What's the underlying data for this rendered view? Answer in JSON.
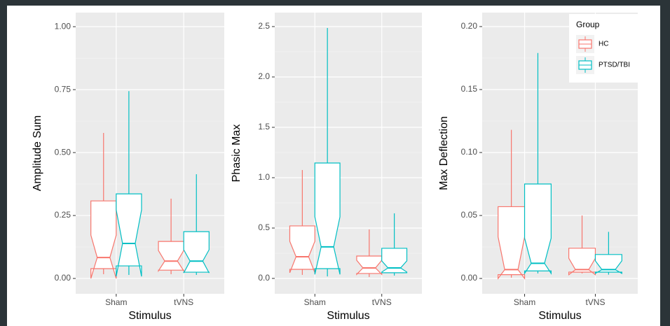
{
  "groups": {
    "title": "Group",
    "items": [
      {
        "name": "HC",
        "color": "#f8766d"
      },
      {
        "name": "PTSD/TBI",
        "color": "#00bfc4"
      }
    ]
  },
  "chart_data": [
    {
      "type": "box",
      "ylabel": "Amplitude Sum",
      "xlabel": "Stimulus",
      "categories": [
        "Sham",
        "tVNS"
      ],
      "ylim": [
        -0.061,
        1.056
      ],
      "yticks": [
        {
          "value": 0,
          "label": "0.00"
        },
        0.25,
        {
          "value": 0.5,
          "label": "0.50"
        },
        0.75,
        {
          "value": 1,
          "label": "1.00"
        }
      ],
      "series": [
        {
          "min": [
            0.017,
            0.017
          ],
          "q1": [
            0.039,
            0.033
          ],
          "median": [
            0.083,
            0.069
          ],
          "q3": [
            0.308,
            0.147
          ],
          "max": [
            0.578,
            0.317
          ],
          "notch_low": [
            0.0,
            0.03
          ],
          "notch_high": [
            0.172,
            0.111
          ]
        },
        {
          "min": [
            0.014,
            0.014
          ],
          "q1": [
            0.05,
            0.025
          ],
          "median": [
            0.139,
            0.069
          ],
          "q3": [
            0.336,
            0.186
          ],
          "max": [
            0.744,
            0.414
          ],
          "notch_low": [
            0.008,
            0.022
          ],
          "notch_high": [
            0.272,
            0.114
          ]
        }
      ]
    },
    {
      "type": "box",
      "ylabel": "Phasic Max",
      "xlabel": "Stimulus",
      "categories": [
        "Sham",
        "tVNS"
      ],
      "ylim": [
        -0.153,
        2.639
      ],
      "yticks": [
        {
          "value": 0,
          "label": "0.0"
        },
        0.5,
        {
          "value": 1,
          "label": "1.0"
        },
        1.5,
        {
          "value": 2,
          "label": "2.0"
        },
        2.5
      ],
      "series": [
        {
          "min": [
            0.035,
            0.014
          ],
          "q1": [
            0.09,
            0.049
          ],
          "median": [
            0.215,
            0.104
          ],
          "q3": [
            0.521,
            0.222
          ],
          "max": [
            1.076,
            0.486
          ],
          "notch_low": [
            0.056,
            0.04
          ],
          "notch_high": [
            0.368,
            0.18
          ]
        },
        {
          "min": [
            0.02,
            0.028
          ],
          "q1": [
            0.097,
            0.056
          ],
          "median": [
            0.313,
            0.104
          ],
          "q3": [
            1.146,
            0.299
          ],
          "max": [
            2.486,
            0.646
          ],
          "notch_low": [
            0.04,
            0.063
          ],
          "notch_high": [
            0.611,
            0.174
          ]
        }
      ]
    },
    {
      "type": "box",
      "ylabel": "Max Deflection",
      "xlabel": "Stimulus",
      "categories": [
        "Sham",
        "tVNS"
      ],
      "ylim": [
        -0.0122,
        0.2111
      ],
      "legend": "top-right",
      "yticks": [
        {
          "value": 0,
          "label": "0.00"
        },
        0.05,
        {
          "value": 0.1,
          "label": "0.10"
        },
        0.15,
        {
          "value": 0.2,
          "label": "0.20"
        }
      ],
      "series": [
        {
          "min": [
            0.0006,
            0.004
          ],
          "q1": [
            0.003,
            0.005
          ],
          "median": [
            0.007,
            0.007
          ],
          "q3": [
            0.057,
            0.024
          ],
          "max": [
            0.118,
            0.05
          ],
          "notch_low": [
            0.0,
            0.003
          ],
          "notch_high": [
            0.033,
            0.016
          ]
        },
        {
          "min": [
            0.004,
            0.003
          ],
          "q1": [
            0.006,
            0.005
          ],
          "median": [
            0.012,
            0.007
          ],
          "q3": [
            0.075,
            0.019
          ],
          "max": [
            0.179,
            0.037
          ],
          "notch_low": [
            0.004,
            0.004
          ],
          "notch_high": [
            0.032,
            0.014
          ]
        }
      ]
    }
  ]
}
